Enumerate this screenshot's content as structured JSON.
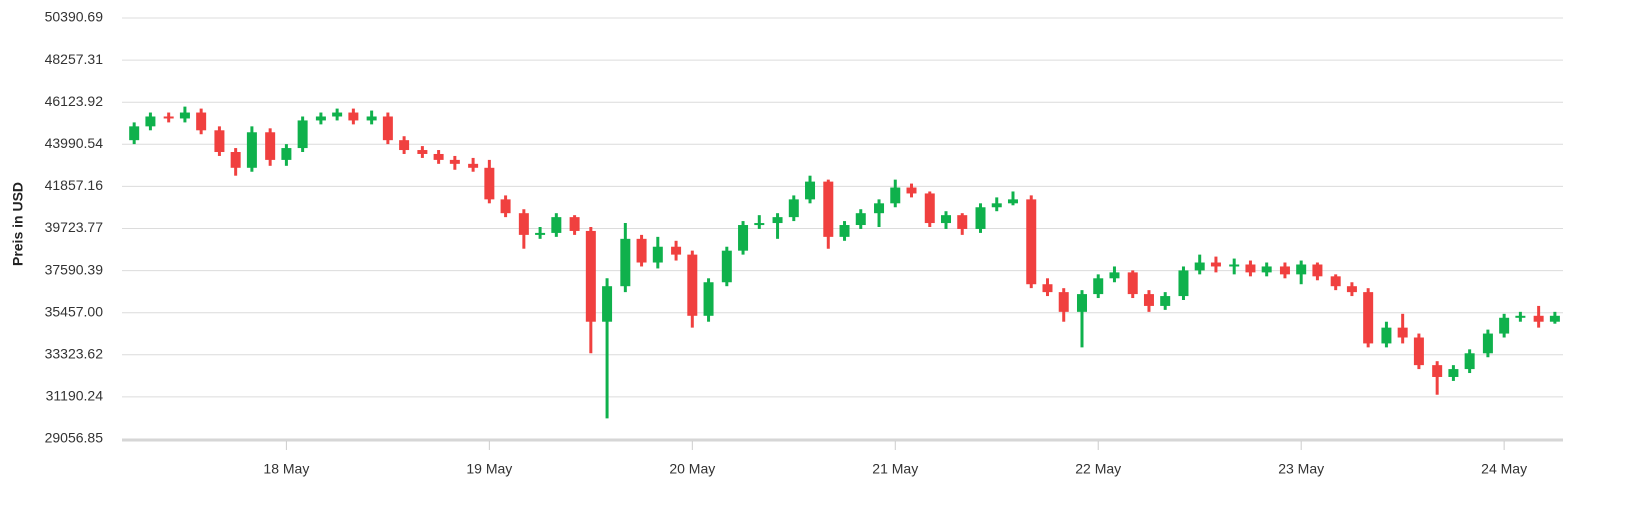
{
  "chart_data": {
    "type": "candlestick",
    "y_label": "Preis in USD",
    "up_color": "#0fb14c",
    "down_color": "#f0403f",
    "grid": true,
    "ylim": [
      29056.85,
      50390.69
    ],
    "yticks": [
      29056.85,
      31190.24,
      33323.62,
      {
        "value": 35457,
        "label": "35457.00"
      },
      37590.39,
      39723.77,
      41857.16,
      43990.54,
      46123.92,
      48257.31,
      50390.69
    ],
    "xlim": [
      17.19,
      24.29
    ],
    "xticks": [
      {
        "value": 18,
        "label": "18 May"
      },
      {
        "value": 19,
        "label": "19 May"
      },
      {
        "value": 20,
        "label": "20 May"
      },
      {
        "value": 21,
        "label": "21 May"
      },
      {
        "value": 22,
        "label": "22 May"
      },
      {
        "value": 23,
        "label": "23 May"
      },
      {
        "value": 24,
        "label": "24 May"
      }
    ],
    "x": [
      17.25,
      17.33,
      17.42,
      17.5,
      17.58,
      17.67,
      17.75,
      17.83,
      17.92,
      18,
      18.08,
      18.17,
      18.25,
      18.33,
      18.42,
      18.5,
      18.58,
      18.67,
      18.75,
      18.83,
      18.92,
      19,
      19.08,
      19.17,
      19.25,
      19.33,
      19.42,
      19.5,
      19.58,
      19.67,
      19.75,
      19.83,
      19.92,
      20,
      20.08,
      20.17,
      20.25,
      20.33,
      20.42,
      20.5,
      20.58,
      20.67,
      20.75,
      20.83,
      20.92,
      21,
      21.08,
      21.17,
      21.25,
      21.33,
      21.42,
      21.5,
      21.58,
      21.67,
      21.75,
      21.83,
      21.92,
      22,
      22.08,
      22.17,
      22.25,
      22.33,
      22.42,
      22.5,
      22.58,
      22.67,
      22.75,
      22.83,
      22.92,
      23,
      23.08,
      23.17,
      23.25,
      23.33,
      23.42,
      23.5,
      23.58,
      23.67,
      23.75,
      23.83,
      23.92,
      24,
      24.08,
      24.17,
      24.25
    ],
    "open": [
      44200,
      44900,
      45400,
      45300,
      45600,
      44700,
      43600,
      42800,
      44600,
      43200,
      43800,
      45200,
      45400,
      45600,
      45200,
      45400,
      44200,
      43700,
      43500,
      43200,
      43000,
      42800,
      41200,
      40500,
      39400,
      39500,
      40300,
      39600,
      35000,
      36800,
      39200,
      38000,
      38800,
      38400,
      35300,
      37000,
      38600,
      39900,
      40000,
      40300,
      41200,
      42100,
      39300,
      39900,
      40500,
      41000,
      41800,
      41500,
      40000,
      40400,
      39700,
      40800,
      41000,
      41200,
      36900,
      36500,
      35500,
      36400,
      37200,
      37500,
      36400,
      35800,
      36300,
      37600,
      38000,
      37800,
      37900,
      37500,
      37800,
      37400,
      37900,
      37300,
      36800,
      36500,
      33900,
      34700,
      34200,
      32800,
      32200,
      32600,
      33400,
      34400,
      35200,
      35300,
      35000
    ],
    "high": [
      45100,
      45600,
      45600,
      45900,
      45800,
      44900,
      43800,
      44900,
      44800,
      44000,
      45400,
      45600,
      45800,
      45800,
      45700,
      45600,
      44400,
      43900,
      43700,
      43400,
      43300,
      43200,
      41400,
      40700,
      39800,
      40500,
      40400,
      39800,
      37200,
      40000,
      39400,
      39300,
      39100,
      38600,
      37200,
      38800,
      40100,
      40400,
      40500,
      41400,
      42400,
      42200,
      40100,
      40700,
      41200,
      42200,
      42000,
      41600,
      40600,
      40500,
      41000,
      41300,
      41600,
      41400,
      37200,
      36700,
      36600,
      37400,
      37800,
      37600,
      36600,
      36500,
      37800,
      38400,
      38300,
      38200,
      38100,
      38000,
      38000,
      38100,
      38000,
      37400,
      37000,
      36700,
      35000,
      35400,
      34400,
      33000,
      32800,
      33600,
      34600,
      35400,
      35500,
      35800,
      35500
    ],
    "low": [
      44000,
      44700,
      45100,
      45100,
      44500,
      43400,
      42400,
      42600,
      42900,
      42900,
      43600,
      45000,
      45200,
      45000,
      45000,
      44000,
      43500,
      43300,
      43000,
      42700,
      42600,
      41000,
      40300,
      38700,
      39200,
      39300,
      39400,
      33400,
      30100,
      36500,
      37800,
      37700,
      38100,
      34700,
      35000,
      36800,
      38400,
      39700,
      39200,
      40100,
      41000,
      38700,
      39100,
      39700,
      39800,
      40800,
      41300,
      39800,
      39700,
      39400,
      39500,
      40600,
      40900,
      36700,
      36300,
      35000,
      33700,
      36200,
      37000,
      36200,
      35500,
      35600,
      36100,
      37400,
      37500,
      37400,
      37300,
      37300,
      37200,
      36900,
      37100,
      36600,
      36300,
      33700,
      33700,
      33900,
      32600,
      31300,
      32000,
      32400,
      33200,
      34200,
      35000,
      34700,
      34900
    ],
    "close": [
      44900,
      45400,
      45300,
      45600,
      44700,
      43600,
      42800,
      44600,
      43200,
      43800,
      45200,
      45400,
      45600,
      45200,
      45400,
      44200,
      43700,
      43500,
      43200,
      43000,
      42800,
      41200,
      40500,
      39400,
      39500,
      40300,
      39600,
      35000,
      36800,
      39200,
      38000,
      38800,
      38400,
      35300,
      37000,
      38600,
      39900,
      40000,
      40300,
      41200,
      42100,
      39300,
      39900,
      40500,
      41000,
      41800,
      41500,
      40000,
      40400,
      39700,
      40800,
      41000,
      41200,
      36900,
      36500,
      35500,
      36400,
      37200,
      37500,
      36400,
      35800,
      36300,
      37600,
      38000,
      37800,
      37900,
      37500,
      37800,
      37400,
      37900,
      37300,
      36800,
      36500,
      33900,
      34700,
      34200,
      32800,
      32200,
      32600,
      33400,
      34400,
      35200,
      35300,
      35000,
      35300
    ]
  }
}
